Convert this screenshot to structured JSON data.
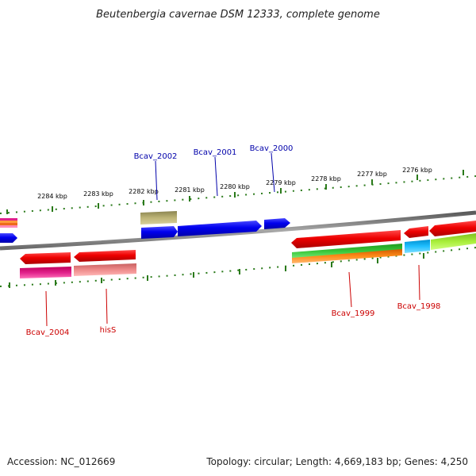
{
  "title": "Beutenbergia cavernae DSM 12333, complete genome",
  "footer": {
    "accession": "Accession: NC_012669",
    "summary": "Topology: circular; Length: 4,669,183 bp; Genes: 4,250"
  },
  "ruler_labels": [
    "2284 kbp",
    "2283 kbp",
    "2282 kbp",
    "2281 kbp",
    "2280 kbp",
    "2279 kbp",
    "2278 kbp",
    "2277 kbp",
    "2276 kbp"
  ],
  "genes_top": [
    "Bcav_2002",
    "Bcav_2001",
    "Bcav_2000"
  ],
  "genes_bottom": [
    "Bcav_2004",
    "hisS",
    "Bcav_1999",
    "Bcav_1998"
  ],
  "colors": {
    "forward_label": "#0000aa",
    "reverse_label": "#cc0000",
    "ruler": "#2a7a1a",
    "backbone": "#808080"
  }
}
